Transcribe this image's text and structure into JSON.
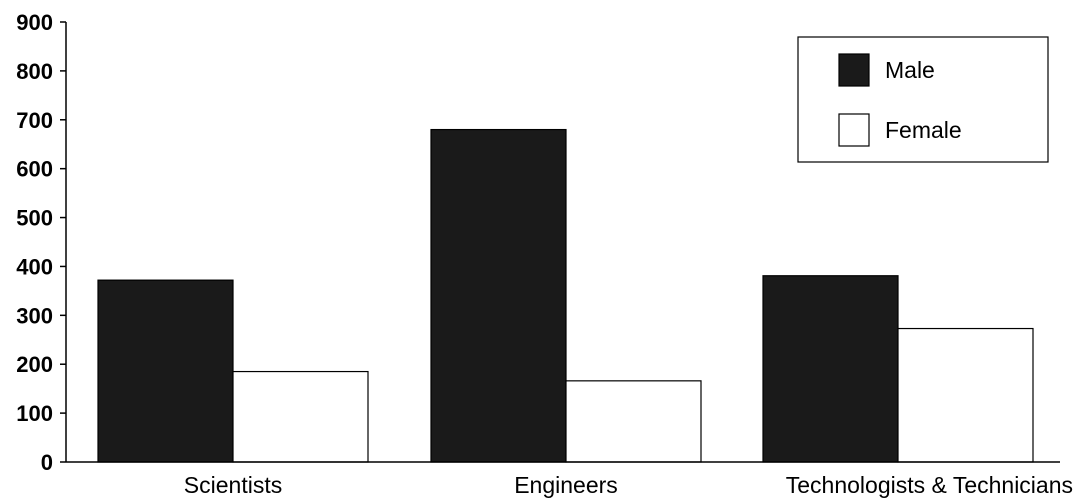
{
  "chart_data": {
    "type": "bar",
    "categories": [
      "Scientists",
      "Engineers",
      "Technologists & Technicians"
    ],
    "series": [
      {
        "name": "Male",
        "values": [
          372,
          680,
          381
        ],
        "color": "#1a1a1a"
      },
      {
        "name": "Female",
        "values": [
          185,
          166,
          273
        ],
        "color": "#ffffff"
      }
    ],
    "yticks": [
      "0",
      "100",
      "200",
      "300",
      "400",
      "500",
      "600",
      "700",
      "800",
      "900"
    ],
    "ylim": [
      0,
      900
    ],
    "grid": false,
    "legend_position": "top-right",
    "title": "",
    "xlabel": "",
    "ylabel": ""
  }
}
